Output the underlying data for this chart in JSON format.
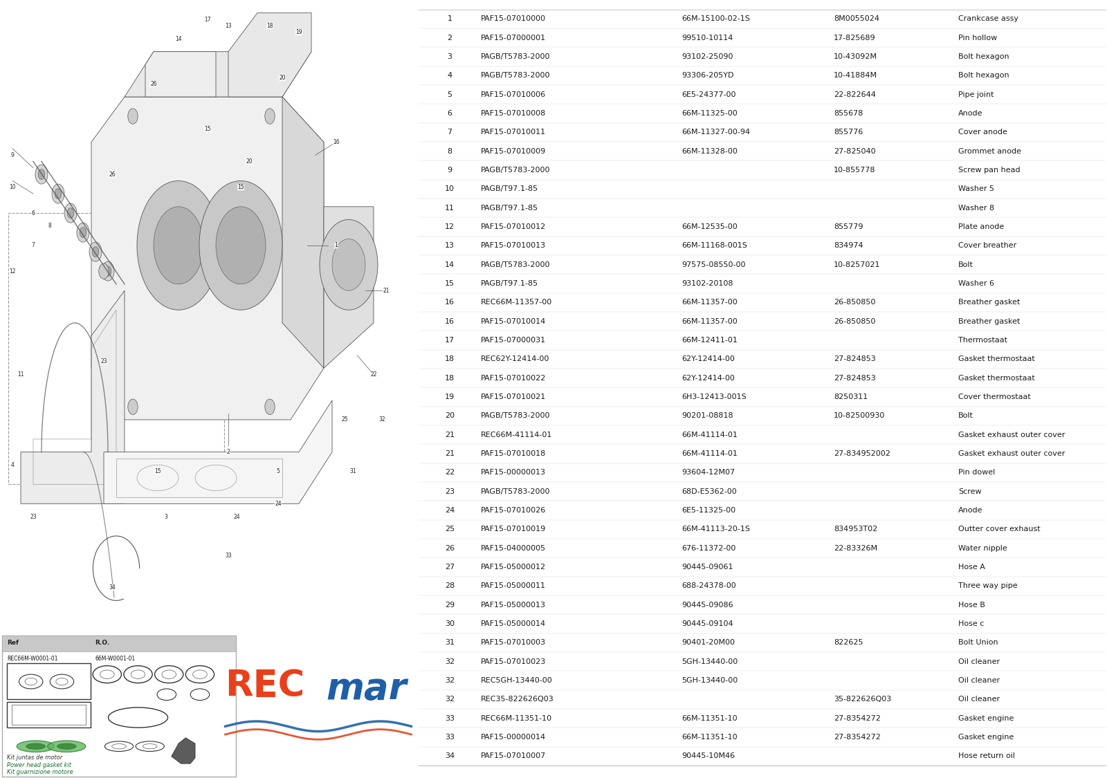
{
  "background_color": "#ffffff",
  "table_rows": [
    [
      "1",
      "PAF15-07010000",
      "66M-15100-02-1S",
      "8M0055024",
      "Crankcase assy"
    ],
    [
      "2",
      "PAF15-07000001",
      "99510-10114",
      "17-825689",
      "Pin hollow"
    ],
    [
      "3",
      "PAGB/T5783-2000",
      "93102-25090",
      "10-43092M",
      "Bolt hexagon"
    ],
    [
      "4",
      "PAGB/T5783-2000",
      "93306-205YD",
      "10-41884M",
      "Bolt hexagon"
    ],
    [
      "5",
      "PAF15-07010006",
      "6E5-24377-00",
      "22-822644",
      "Pipe joint"
    ],
    [
      "6",
      "PAF15-07010008",
      "66M-11325-00",
      "855678",
      "Anode"
    ],
    [
      "7",
      "PAF15-07010011",
      "66M-11327-00-94",
      "855776",
      "Cover anode"
    ],
    [
      "8",
      "PAF15-07010009",
      "66M-11328-00",
      "27-825040",
      "Grommet anode"
    ],
    [
      "9",
      "PAGB/T5783-2000",
      "",
      "10-855778",
      "Screw pan head"
    ],
    [
      "10",
      "PAGB/T97.1-85",
      "",
      "",
      "Washer 5"
    ],
    [
      "11",
      "PAGB/T97.1-85",
      "",
      "",
      "Washer 8"
    ],
    [
      "12",
      "PAF15-07010012",
      "66M-12535-00",
      "855779",
      "Plate anode"
    ],
    [
      "13",
      "PAF15-07010013",
      "66M-11168-001S",
      "834974",
      "Cover breather"
    ],
    [
      "14",
      "PAGB/T5783-2000",
      "97575-08550-00",
      "10-8257021",
      "Bolt"
    ],
    [
      "15",
      "PAGB/T97.1-85",
      "93102-20108",
      "",
      "Washer 6"
    ],
    [
      "16",
      "REC66M-11357-00",
      "66M-11357-00",
      "26-850850",
      "Breather gasket"
    ],
    [
      "16",
      "PAF15-07010014",
      "66M-11357-00",
      "26-850850",
      "Breather gasket"
    ],
    [
      "17",
      "PAF15-07000031",
      "66M-12411-01",
      "",
      "Thermostaat"
    ],
    [
      "18",
      "REC62Y-12414-00",
      "62Y-12414-00",
      "27-824853",
      "Gasket thermostaat"
    ],
    [
      "18",
      "PAF15-07010022",
      "62Y-12414-00",
      "27-824853",
      "Gasket thermostaat"
    ],
    [
      "19",
      "PAF15-07010021",
      "6H3-12413-001S",
      "8250311",
      "Cover thermostaat"
    ],
    [
      "20",
      "PAGB/T5783-2000",
      "90201-08818",
      "10-82500930",
      "Bolt"
    ],
    [
      "21",
      "REC66M-41114-01",
      "66M-41114-01",
      "",
      "Gasket exhaust outer cover"
    ],
    [
      "21",
      "PAF15-07010018",
      "66M-41114-01",
      "27-834952002",
      "Gasket exhaust outer cover"
    ],
    [
      "22",
      "PAF15-00000013",
      "93604-12M07",
      "",
      "Pin dowel"
    ],
    [
      "23",
      "PAGB/T5783-2000",
      "68D-E5362-00",
      "",
      "Screw"
    ],
    [
      "24",
      "PAF15-07010026",
      "6E5-11325-00",
      "",
      "Anode"
    ],
    [
      "25",
      "PAF15-07010019",
      "66M-41113-20-1S",
      "834953T02",
      "Outter cover exhaust"
    ],
    [
      "26",
      "PAF15-04000005",
      "676-11372-00",
      "22-83326M",
      "Water nipple"
    ],
    [
      "27",
      "PAF15-05000012",
      "90445-09061",
      "",
      "Hose A"
    ],
    [
      "28",
      "PAF15-05000011",
      "688-24378-00",
      "",
      "Three way pipe"
    ],
    [
      "29",
      "PAF15-05000013",
      "90445-09086",
      "",
      "Hose B"
    ],
    [
      "30",
      "PAF15-05000014",
      "90445-09104",
      "",
      "Hose c"
    ],
    [
      "31",
      "PAF15-07010003",
      "90401-20M00",
      "822625",
      "Bolt Union"
    ],
    [
      "32",
      "PAF15-07010023",
      "5GH-13440-00",
      "",
      "Oil cleaner"
    ],
    [
      "32",
      "REC5GH-13440-00",
      "5GH-13440-00",
      "",
      "Oil cleaner"
    ],
    [
      "32",
      "REC35-822626Q03",
      "",
      "35-822626Q03",
      "Oil cleaner"
    ],
    [
      "33",
      "REC66M-11351-10",
      "66M-11351-10",
      "27-8354272",
      "Gasket engine"
    ],
    [
      "33",
      "PAF15-00000014",
      "66M-11351-10",
      "27-8354272",
      "Gasket engine"
    ],
    [
      "34",
      "PAF15-07010007",
      "90445-10M46",
      "",
      "Hose return oil"
    ]
  ],
  "text_color": "#1a1a1a",
  "line_color": "#cccccc",
  "recmar_red": "#e8401a",
  "recmar_blue": "#1e5fa8",
  "recmar_green": "#3a8a3a",
  "kit_ref": "REC66M-W0001-01",
  "kit_ro": "66M-W0001-01",
  "kit_text1": "Kit juntas de motor",
  "kit_text2": "Power head gasket kit",
  "kit_text3": "Kit guarnizione motore"
}
